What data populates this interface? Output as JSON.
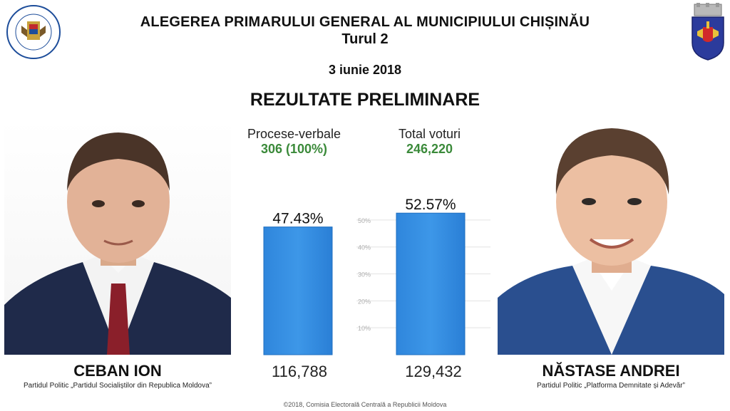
{
  "header": {
    "title": "ALEGEREA PRIMARULUI GENERAL AL MUNICIPIULUI CHIȘINĂU",
    "round": "Turul 2",
    "date": "3 iunie 2018",
    "subtitle": "REZULTATE PRELIMINARE",
    "left_logo_text": "REPUBLICA MOLDOVA · COMISIA ELECTORALĂ CENTRALĂ"
  },
  "stats": {
    "reports_label": "Procese-verbale",
    "reports_value": "306 (100%)",
    "total_label": "Total voturi",
    "total_value": "246,220"
  },
  "candidates": [
    {
      "name": "CEBAN ION",
      "party": "Partidul Politic „Partidul Socialiștilor din Republica Moldova”",
      "votes": "116,788",
      "percent_label": "47.43%"
    },
    {
      "name": "NĂSTASE ANDREI",
      "party": "Partidul Politic „Platforma Demnitate și Adevăr”",
      "votes": "129,432",
      "percent_label": "52.57%"
    }
  ],
  "chart_data": {
    "type": "bar",
    "categories": [
      "CEBAN ION",
      "NĂSTASE ANDREI"
    ],
    "values": [
      47.43,
      52.57
    ],
    "data_labels": [
      "47.43%",
      "52.57%"
    ],
    "ylim": [
      0,
      55
    ],
    "yticks": [
      "10%",
      "20%",
      "30%",
      "40%",
      "50%"
    ],
    "ytick_values": [
      10,
      20,
      30,
      40,
      50
    ],
    "grid": true,
    "bar_color": "#3d97e8"
  },
  "footer": "©2018, Comisia Electorală Centrală a Republicii Moldova",
  "colors": {
    "accent_green": "#3b8a3a",
    "bar_blue": "#3d97e8"
  }
}
